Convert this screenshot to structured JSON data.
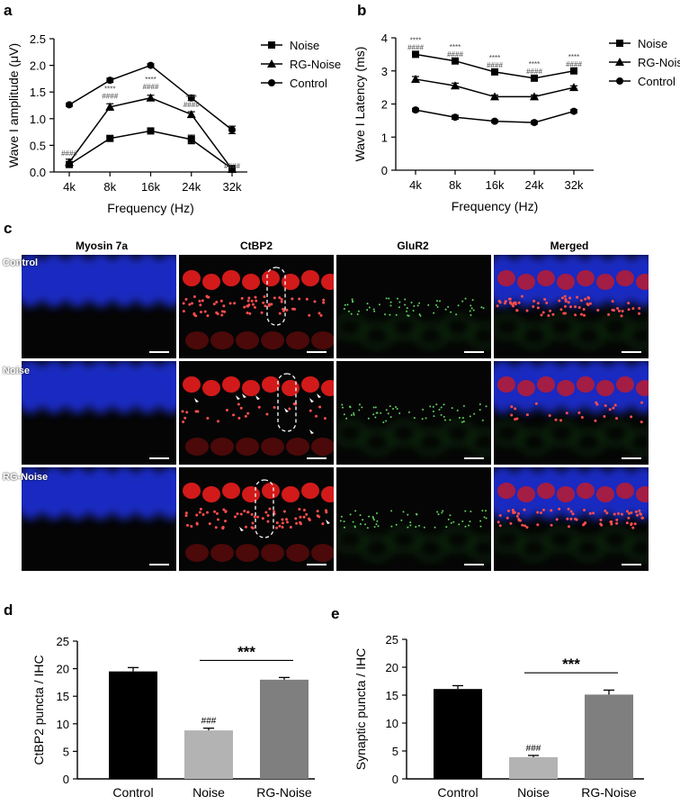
{
  "panels": {
    "a": "a",
    "b": "b",
    "c": "c",
    "d": "d",
    "e": "e"
  },
  "chart_data": [
    {
      "id": "a",
      "type": "line",
      "ylabel": "Wave I amplitude (μV)",
      "xlabel": "Frequency (Hz)",
      "categories": [
        "4k",
        "8k",
        "16k",
        "24k",
        "32k"
      ],
      "ylim": [
        0,
        2.5
      ],
      "yticks": [
        "0.0",
        "0.5",
        "1.0",
        "1.5",
        "2.0",
        "2.5"
      ],
      "ytick_values": [
        0,
        0.5,
        1,
        1.5,
        2,
        2.5
      ],
      "series": [
        {
          "name": "Noise",
          "marker": "square",
          "values": [
            0.14,
            0.63,
            0.77,
            0.61,
            0.06
          ],
          "errors": [
            0.04,
            0.04,
            0.03,
            0.08,
            0.03
          ]
        },
        {
          "name": "RG-Noise",
          "marker": "triangle",
          "values": [
            0.18,
            1.22,
            1.39,
            1.08,
            0.05
          ],
          "errors": [
            0.06,
            0.06,
            0.05,
            0.05,
            0.02
          ]
        },
        {
          "name": "Control",
          "marker": "circle",
          "values": [
            1.26,
            1.72,
            2.0,
            1.39,
            0.79
          ],
          "errors": [
            0.03,
            0.04,
            0.03,
            0.05,
            0.07
          ]
        }
      ],
      "annotations": [
        {
          "cat": 0,
          "lines": [
            "####"
          ],
          "y": 0.3
        },
        {
          "cat": 1,
          "lines": [
            "****",
            "####"
          ],
          "y": 1.38
        },
        {
          "cat": 2,
          "lines": [
            "****",
            "####"
          ],
          "y": 1.55
        },
        {
          "cat": 3,
          "lines": [
            "****",
            "####"
          ],
          "y": 1.22
        },
        {
          "cat": 4,
          "lines": [
            "####"
          ],
          "y": 0.07
        }
      ],
      "legend_position": "right"
    },
    {
      "id": "b",
      "type": "line",
      "ylabel": "Wave I Latency (ms)",
      "xlabel": "Frequency (Hz)",
      "categories": [
        "4k",
        "8k",
        "16k",
        "24k",
        "32k"
      ],
      "ylim": [
        0,
        4
      ],
      "yticks": [
        "0",
        "1",
        "2",
        "3",
        "4"
      ],
      "ytick_values": [
        0,
        1,
        2,
        3,
        4
      ],
      "series": [
        {
          "name": "Noise",
          "marker": "square",
          "values": [
            3.5,
            3.3,
            2.97,
            2.78,
            3.0
          ],
          "errors": [
            0.05,
            0.05,
            0.05,
            0.05,
            0.05
          ]
        },
        {
          "name": "RG-Noise",
          "marker": "triangle",
          "values": [
            2.75,
            2.55,
            2.22,
            2.22,
            2.5
          ],
          "errors": [
            0.08,
            0.08,
            0.05,
            0.05,
            0.05
          ]
        },
        {
          "name": "Control",
          "marker": "circle",
          "values": [
            1.82,
            1.6,
            1.48,
            1.44,
            1.78
          ],
          "errors": [
            0.05,
            0.06,
            0.04,
            0.05,
            0.05
          ]
        }
      ],
      "annotations": [
        {
          "cat": 0,
          "lines": [
            "****",
            "####"
          ],
          "y": 3.63
        },
        {
          "cat": 1,
          "lines": [
            "****",
            "####"
          ],
          "y": 3.43
        },
        {
          "cat": 2,
          "lines": [
            "****",
            "####"
          ],
          "y": 3.1
        },
        {
          "cat": 3,
          "lines": [
            "****",
            "####"
          ],
          "y": 2.91
        },
        {
          "cat": 4,
          "lines": [
            "****",
            "####"
          ],
          "y": 3.13
        }
      ],
      "legend_position": "right"
    },
    {
      "id": "d",
      "type": "bar",
      "ylabel": "CtBP2 puncta / IHC",
      "categories": [
        "Control",
        "Noise",
        "RG-Noise"
      ],
      "values": [
        19.5,
        8.8,
        18.0
      ],
      "errors": [
        0.7,
        0.4,
        0.4
      ],
      "colors": [
        "#000000",
        "#b3b3b3",
        "#7f7f7f"
      ],
      "ylim": [
        0,
        25
      ],
      "yticks": [
        "0",
        "5",
        "10",
        "15",
        "20",
        "25"
      ],
      "ytick_values": [
        0,
        5,
        10,
        15,
        20,
        25
      ],
      "bar_labels": [
        {
          "cat": 1,
          "text": "###"
        }
      ],
      "bracket": {
        "from": 1,
        "to": 2,
        "y": 21.5,
        "text": "***"
      }
    },
    {
      "id": "e",
      "type": "bar",
      "ylabel": "Synaptic puncta / IHC",
      "categories": [
        "Control",
        "Noise",
        "RG-Noise"
      ],
      "values": [
        16.1,
        3.9,
        15.1
      ],
      "errors": [
        0.6,
        0.3,
        0.8
      ],
      "colors": [
        "#000000",
        "#b3b3b3",
        "#7f7f7f"
      ],
      "ylim": [
        0,
        25
      ],
      "yticks": [
        "0",
        "5",
        "10",
        "15",
        "20",
        "25"
      ],
      "ytick_values": [
        0,
        5,
        10,
        15,
        20,
        25
      ],
      "bar_labels": [
        {
          "cat": 1,
          "text": "###"
        }
      ],
      "bracket": {
        "from": 1,
        "to": 2,
        "y": 19,
        "text": "***"
      }
    }
  ],
  "micrograph": {
    "columns": [
      "Myosin 7a",
      "CtBP2",
      "GluR2",
      "Merged"
    ],
    "rows": [
      "Control",
      "Noise",
      "RG-Noise"
    ],
    "colors": {
      "blue": "#1a2fd6",
      "red": "#d21a1a",
      "green": "#1e8a1e",
      "dark": "#050505"
    }
  }
}
